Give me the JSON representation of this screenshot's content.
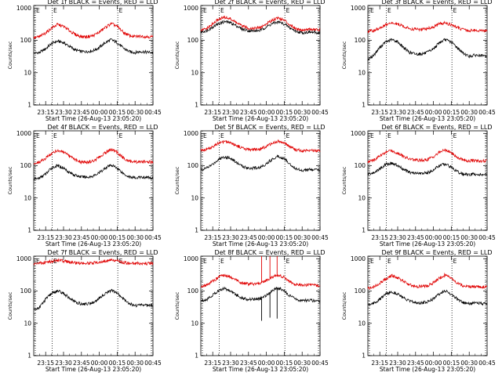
{
  "figure": {
    "x_axis_title": "Start Time (26-Aug-13 23:05:20)",
    "y_axis_title": "Counts/sec",
    "x_tick_labels": [
      "23:15",
      "23:30",
      "23:45",
      "00:00",
      "00:15",
      "00:30",
      "00:45"
    ],
    "y_tick_labels": [
      "1",
      "10",
      "100",
      "1000"
    ],
    "event_marker_labels": [
      "E",
      "E"
    ],
    "colors": {
      "events": "#000000",
      "lld": "#e00000",
      "background": "#ffffff",
      "marker_line": "#000000"
    }
  },
  "chart_data": [
    {
      "type": "line",
      "title": "Det 1f BLACK = Events, RED = LLD",
      "xlabel": "Start Time (26-Aug-13 23:05:20)",
      "ylabel": "Counts/sec",
      "x_range_minutes": [
        0,
        100
      ],
      "yscale": "log",
      "ylim": [
        1,
        1200
      ],
      "event_markers_minutes": [
        15.5,
        70.5
      ],
      "series": [
        {
          "name": "Events",
          "color": "#000000",
          "x": [
            0,
            5,
            10,
            15,
            20,
            25,
            30,
            35,
            40,
            45,
            50,
            55,
            60,
            65,
            70,
            75,
            80,
            85,
            90,
            95,
            100
          ],
          "values": [
            40,
            42,
            55,
            80,
            95,
            85,
            65,
            50,
            45,
            45,
            48,
            60,
            85,
            105,
            85,
            58,
            45,
            42,
            45,
            43,
            42
          ]
        },
        {
          "name": "LLD",
          "color": "#e00000",
          "x": [
            0,
            5,
            10,
            15,
            20,
            25,
            30,
            35,
            40,
            45,
            50,
            55,
            60,
            65,
            70,
            75,
            80,
            85,
            90,
            95,
            100
          ],
          "values": [
            120,
            130,
            170,
            240,
            310,
            270,
            200,
            150,
            130,
            130,
            140,
            180,
            250,
            330,
            270,
            180,
            140,
            130,
            135,
            130,
            128
          ]
        }
      ]
    },
    {
      "type": "line",
      "title": "Det 2f BLACK = Events, RED = LLD",
      "xlabel": "Start Time (26-Aug-13 23:05:20)",
      "ylabel": "Counts/sec",
      "x_range_minutes": [
        0,
        100
      ],
      "yscale": "log",
      "ylim": [
        1,
        1200
      ],
      "event_markers_minutes": [
        15.5,
        70.5
      ],
      "series": [
        {
          "name": "Events",
          "color": "#000000",
          "x": [
            0,
            5,
            10,
            15,
            20,
            25,
            30,
            35,
            40,
            45,
            50,
            55,
            60,
            65,
            70,
            75,
            80,
            85,
            90,
            95,
            100
          ],
          "values": [
            180,
            200,
            260,
            330,
            380,
            350,
            280,
            220,
            200,
            195,
            205,
            260,
            330,
            370,
            320,
            240,
            190,
            170,
            180,
            175,
            170
          ]
        },
        {
          "name": "LLD",
          "color": "#e00000",
          "x": [
            0,
            5,
            10,
            15,
            20,
            25,
            30,
            35,
            40,
            45,
            50,
            55,
            60,
            65,
            70,
            75,
            80,
            85,
            90,
            95,
            100
          ],
          "values": [
            200,
            230,
            320,
            450,
            520,
            460,
            350,
            270,
            240,
            235,
            250,
            320,
            430,
            500,
            420,
            300,
            230,
            210,
            220,
            215,
            210
          ]
        }
      ]
    },
    {
      "type": "line",
      "title": "Det 3f BLACK = Events, RED = LLD",
      "xlabel": "Start Time (26-Aug-13 23:05:20)",
      "ylabel": "Counts/sec",
      "x_range_minutes": [
        0,
        100
      ],
      "yscale": "log",
      "ylim": [
        1,
        1200
      ],
      "event_markers_minutes": [
        15.5,
        70.5
      ],
      "series": [
        {
          "name": "Events",
          "color": "#000000",
          "x": [
            0,
            5,
            10,
            15,
            20,
            25,
            30,
            35,
            40,
            45,
            50,
            55,
            60,
            65,
            70,
            75,
            80,
            85,
            90,
            95,
            100
          ],
          "values": [
            25,
            35,
            60,
            90,
            105,
            90,
            60,
            42,
            38,
            38,
            42,
            55,
            85,
            105,
            88,
            60,
            40,
            32,
            35,
            33,
            32
          ]
        },
        {
          "name": "LLD",
          "color": "#e00000",
          "x": [
            0,
            5,
            10,
            15,
            20,
            25,
            30,
            35,
            40,
            45,
            50,
            55,
            60,
            65,
            70,
            75,
            80,
            85,
            90,
            95,
            100
          ],
          "values": [
            190,
            200,
            240,
            300,
            340,
            320,
            270,
            230,
            220,
            220,
            230,
            260,
            320,
            350,
            300,
            250,
            215,
            200,
            205,
            200,
            195
          ]
        }
      ]
    },
    {
      "type": "line",
      "title": "Det 4f BLACK = Events, RED = LLD",
      "xlabel": "Start Time (26-Aug-13 23:05:20)",
      "ylabel": "Counts/sec",
      "x_range_minutes": [
        0,
        100
      ],
      "yscale": "log",
      "ylim": [
        1,
        1200
      ],
      "event_markers_minutes": [
        15.5,
        70.5
      ],
      "series": [
        {
          "name": "Events",
          "color": "#000000",
          "x": [
            0,
            5,
            10,
            15,
            20,
            25,
            30,
            35,
            40,
            45,
            50,
            55,
            60,
            65,
            70,
            75,
            80,
            85,
            90,
            95,
            100
          ],
          "values": [
            38,
            42,
            55,
            85,
            100,
            85,
            62,
            50,
            45,
            44,
            48,
            60,
            85,
            105,
            85,
            58,
            45,
            42,
            44,
            43,
            41
          ]
        },
        {
          "name": "LLD",
          "color": "#e00000",
          "x": [
            0,
            5,
            10,
            15,
            20,
            25,
            30,
            35,
            40,
            45,
            50,
            55,
            60,
            65,
            70,
            75,
            80,
            85,
            90,
            95,
            100
          ],
          "values": [
            115,
            130,
            170,
            240,
            300,
            260,
            195,
            150,
            130,
            128,
            140,
            180,
            250,
            320,
            260,
            175,
            140,
            130,
            132,
            130,
            126
          ]
        }
      ]
    },
    {
      "type": "line",
      "title": "Det 5f BLACK = Events, RED = LLD",
      "xlabel": "Start Time (26-Aug-13 23:05:20)",
      "ylabel": "Counts/sec",
      "x_range_minutes": [
        0,
        100
      ],
      "yscale": "log",
      "ylim": [
        1,
        1200
      ],
      "event_markers_minutes": [
        15.5,
        70.5
      ],
      "series": [
        {
          "name": "Events",
          "color": "#000000",
          "x": [
            0,
            5,
            10,
            15,
            20,
            25,
            30,
            35,
            40,
            45,
            50,
            55,
            60,
            65,
            70,
            75,
            80,
            85,
            90,
            95,
            100
          ],
          "values": [
            75,
            85,
            110,
            160,
            190,
            170,
            125,
            95,
            85,
            84,
            90,
            115,
            160,
            200,
            165,
            110,
            80,
            72,
            75,
            74,
            73
          ]
        },
        {
          "name": "LLD",
          "color": "#e00000",
          "x": [
            0,
            5,
            10,
            15,
            20,
            25,
            30,
            35,
            40,
            45,
            50,
            55,
            60,
            65,
            70,
            75,
            80,
            85,
            90,
            95,
            100
          ],
          "values": [
            300,
            320,
            380,
            500,
            560,
            520,
            420,
            350,
            320,
            315,
            330,
            390,
            500,
            570,
            500,
            380,
            310,
            290,
            300,
            295,
            290
          ]
        }
      ]
    },
    {
      "type": "line",
      "title": "Det 6f BLACK = Events, RED = LLD",
      "xlabel": "Start Time (26-Aug-13 23:05:20)",
      "ylabel": "Counts/sec",
      "x_range_minutes": [
        0,
        100
      ],
      "yscale": "log",
      "ylim": [
        1,
        1200
      ],
      "event_markers_minutes": [
        15.5,
        70.5
      ],
      "series": [
        {
          "name": "Events",
          "color": "#000000",
          "x": [
            0,
            5,
            10,
            15,
            20,
            25,
            30,
            35,
            40,
            45,
            50,
            55,
            60,
            65,
            70,
            75,
            80,
            85,
            90,
            95,
            100
          ],
          "values": [
            55,
            60,
            80,
            110,
            120,
            100,
            75,
            62,
            58,
            57,
            60,
            75,
            100,
            115,
            90,
            65,
            55,
            52,
            55,
            53,
            52
          ]
        },
        {
          "name": "LLD",
          "color": "#e00000",
          "x": [
            0,
            5,
            10,
            15,
            20,
            25,
            30,
            35,
            40,
            45,
            50,
            55,
            60,
            65,
            70,
            75,
            80,
            85,
            90,
            95,
            100
          ],
          "values": [
            130,
            150,
            200,
            260,
            290,
            250,
            190,
            160,
            150,
            148,
            155,
            190,
            260,
            310,
            250,
            180,
            150,
            140,
            145,
            142,
            140
          ]
        }
      ]
    },
    {
      "type": "line",
      "title": "Det 7f BLACK = Events, RED = LLD",
      "xlabel": "Start Time (26-Aug-13 23:05:20)",
      "ylabel": "Counts/sec",
      "x_range_minutes": [
        0,
        100
      ],
      "yscale": "log",
      "ylim": [
        1,
        1200
      ],
      "event_markers_minutes": [
        15.5,
        70.5
      ],
      "series": [
        {
          "name": "Events",
          "color": "#000000",
          "x": [
            0,
            5,
            10,
            15,
            20,
            25,
            30,
            35,
            40,
            45,
            50,
            55,
            60,
            65,
            70,
            75,
            80,
            85,
            90,
            95,
            100
          ],
          "values": [
            25,
            32,
            55,
            85,
            100,
            85,
            60,
            45,
            40,
            40,
            44,
            58,
            85,
            105,
            85,
            58,
            42,
            35,
            38,
            36,
            35
          ]
        },
        {
          "name": "LLD",
          "color": "#e00000",
          "x": [
            0,
            5,
            10,
            15,
            20,
            25,
            30,
            35,
            40,
            45,
            50,
            55,
            60,
            65,
            70,
            75,
            80,
            85,
            90,
            95,
            100
          ],
          "values": [
            700,
            720,
            760,
            830,
            880,
            850,
            790,
            750,
            730,
            730,
            740,
            780,
            850,
            900,
            840,
            770,
            730,
            710,
            720,
            715,
            710
          ]
        }
      ]
    },
    {
      "type": "line",
      "title": "Det 8f BLACK = Events, RED = LLD",
      "xlabel": "Start Time (26-Aug-13 23:05:20)",
      "ylabel": "Counts/sec",
      "x_range_minutes": [
        0,
        100
      ],
      "yscale": "log",
      "ylim": [
        1,
        1200
      ],
      "event_markers_minutes": [
        15.5,
        70.5
      ],
      "series": [
        {
          "name": "Events",
          "color": "#000000",
          "x": [
            0,
            5,
            10,
            15,
            20,
            25,
            30,
            35,
            40,
            45,
            50,
            55,
            60,
            65,
            70,
            75,
            80,
            85,
            90,
            95,
            100
          ],
          "values": [
            50,
            55,
            75,
            105,
            120,
            100,
            75,
            60,
            55,
            55,
            58,
            75,
            105,
            125,
            100,
            70,
            55,
            50,
            52,
            50,
            49
          ],
          "spikes": [
            {
              "x": 51,
              "to": 12
            },
            {
              "x": 58,
              "to": 15
            },
            {
              "x": 64,
              "to": 14
            }
          ]
        },
        {
          "name": "LLD",
          "color": "#e00000",
          "x": [
            0,
            5,
            10,
            15,
            20,
            25,
            30,
            35,
            40,
            45,
            50,
            55,
            60,
            65,
            70,
            75,
            80,
            85,
            90,
            95,
            100
          ],
          "values": [
            140,
            155,
            200,
            270,
            310,
            270,
            210,
            175,
            165,
            165,
            170,
            210,
            270,
            310,
            260,
            190,
            160,
            150,
            155,
            150,
            148
          ],
          "spikes": [
            {
              "x": 51,
              "to": 1200
            },
            {
              "x": 58,
              "to": 1200
            },
            {
              "x": 64,
              "to": 1200
            }
          ]
        }
      ]
    },
    {
      "type": "line",
      "title": "Det 9f BLACK = Events, RED = LLD",
      "xlabel": "Start Time (26-Aug-13 23:05:20)",
      "ylabel": "Counts/sec",
      "x_range_minutes": [
        0,
        100
      ],
      "yscale": "log",
      "ylim": [
        1,
        1200
      ],
      "event_markers_minutes": [
        15.5,
        70.5
      ],
      "series": [
        {
          "name": "Events",
          "color": "#000000",
          "x": [
            0,
            5,
            10,
            15,
            20,
            25,
            30,
            35,
            40,
            45,
            50,
            55,
            60,
            65,
            70,
            75,
            80,
            85,
            90,
            95,
            100
          ],
          "values": [
            38,
            42,
            55,
            80,
            95,
            82,
            60,
            48,
            44,
            43,
            47,
            58,
            82,
            100,
            80,
            56,
            43,
            40,
            42,
            41,
            40
          ]
        },
        {
          "name": "LLD",
          "color": "#e00000",
          "x": [
            0,
            5,
            10,
            15,
            20,
            25,
            30,
            35,
            40,
            45,
            50,
            55,
            60,
            65,
            70,
            75,
            80,
            85,
            90,
            95,
            100
          ],
          "values": [
            120,
            135,
            175,
            240,
            300,
            260,
            195,
            155,
            140,
            138,
            145,
            180,
            250,
            320,
            260,
            180,
            145,
            135,
            138,
            135,
            132
          ]
        }
      ]
    }
  ]
}
